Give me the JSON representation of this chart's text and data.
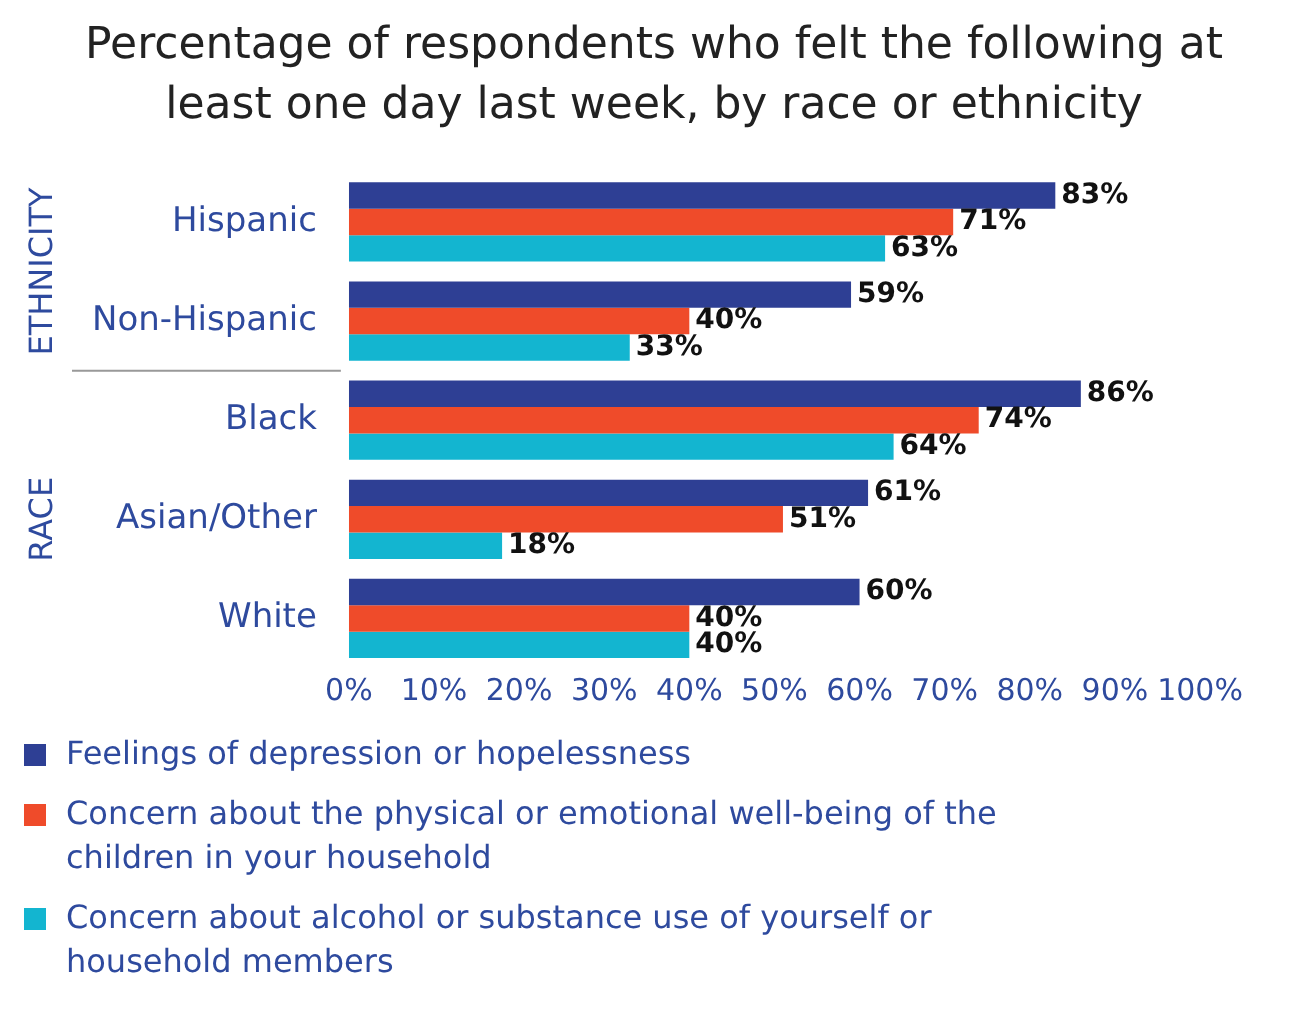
{
  "chart_data": {
    "type": "bar",
    "orientation": "horizontal",
    "title": "Percentage of respondents who felt the following at least one day last week, by race or ethnicity",
    "categories": [
      "Hispanic",
      "Non-Hispanic",
      "Black",
      "Asian/Other",
      "White"
    ],
    "series": [
      {
        "name": "Feelings of depression or hopelessness",
        "color": "#2e3f94",
        "values": [
          83,
          59,
          86,
          61,
          60
        ],
        "value_labels": [
          "83%",
          "59%",
          "86%",
          "61%",
          "60%"
        ]
      },
      {
        "name": "Concern about the physical or emotional well-being of the children in your household",
        "color": "#ef4b2a",
        "values": [
          71,
          40,
          74,
          51,
          40
        ],
        "value_labels": [
          "71%",
          "40%",
          "74%",
          "51%",
          "40%"
        ]
      },
      {
        "name": "Concern about alcohol or substance use of yourself or household members",
        "color": "#13b5d0",
        "values": [
          63,
          33,
          64,
          18,
          40
        ],
        "value_labels": [
          "63%",
          "33%",
          "64%",
          "18%",
          "40%"
        ]
      }
    ],
    "xlim": [
      0,
      100
    ],
    "xticks": [
      {
        "value": 0,
        "label": "0%"
      },
      {
        "value": 10,
        "label": "10%"
      },
      {
        "value": 20,
        "label": "20%"
      },
      {
        "value": 30,
        "label": "30%"
      },
      {
        "value": 40,
        "label": "40%"
      },
      {
        "value": 50,
        "label": "50%"
      },
      {
        "value": 60,
        "label": "60%"
      },
      {
        "value": 70,
        "label": "70%"
      },
      {
        "value": 80,
        "label": "80%"
      },
      {
        "value": 90,
        "label": "90%"
      },
      {
        "value": 100,
        "label": "100%"
      }
    ],
    "annotations": [
      "ETHNICITY",
      "RACE"
    ],
    "grid": false,
    "legend": "bottom"
  }
}
